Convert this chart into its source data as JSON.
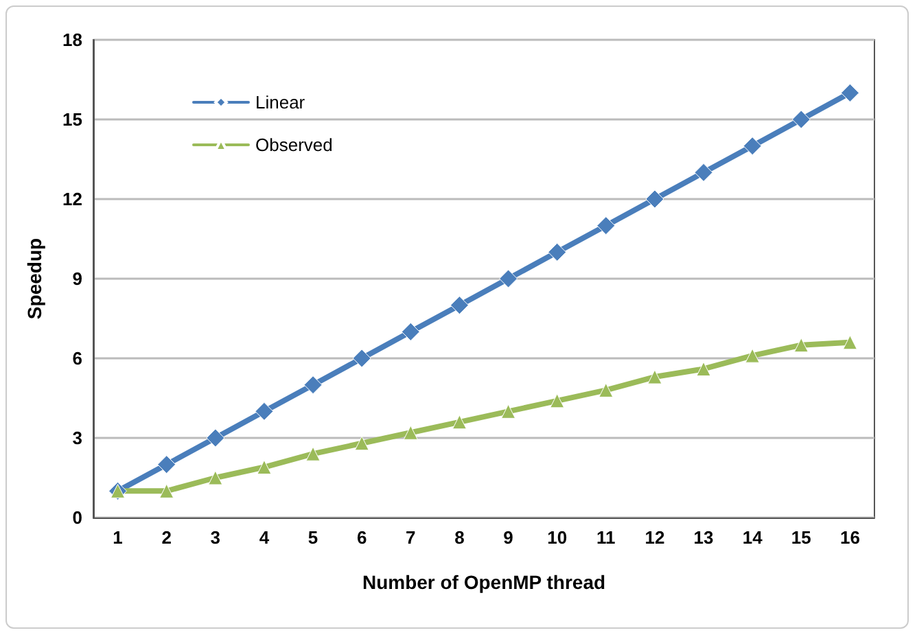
{
  "chart_data": {
    "type": "line",
    "xlabel": "Number of OpenMP thread",
    "ylabel": "Speedup",
    "categories": [
      "1",
      "2",
      "3",
      "4",
      "5",
      "6",
      "7",
      "8",
      "9",
      "10",
      "11",
      "12",
      "13",
      "14",
      "15",
      "16"
    ],
    "series": [
      {
        "name": "Linear",
        "color": "#4a7ebb",
        "marker": "diamond",
        "values": [
          1,
          2,
          3,
          4,
          5,
          6,
          7,
          8,
          9,
          10,
          11,
          12,
          13,
          14,
          15,
          16
        ]
      },
      {
        "name": "Observed",
        "color": "#9bbb59",
        "marker": "triangle",
        "values": [
          1.0,
          1.0,
          1.5,
          1.9,
          2.4,
          2.8,
          3.2,
          3.6,
          4.0,
          4.4,
          4.8,
          5.3,
          5.6,
          6.1,
          6.5,
          6.6
        ]
      }
    ],
    "ylim": [
      0,
      18
    ],
    "yticks": [
      0,
      3,
      6,
      9,
      12,
      15,
      18
    ],
    "grid": "y",
    "legend": "top left",
    "line_style": "solid"
  }
}
